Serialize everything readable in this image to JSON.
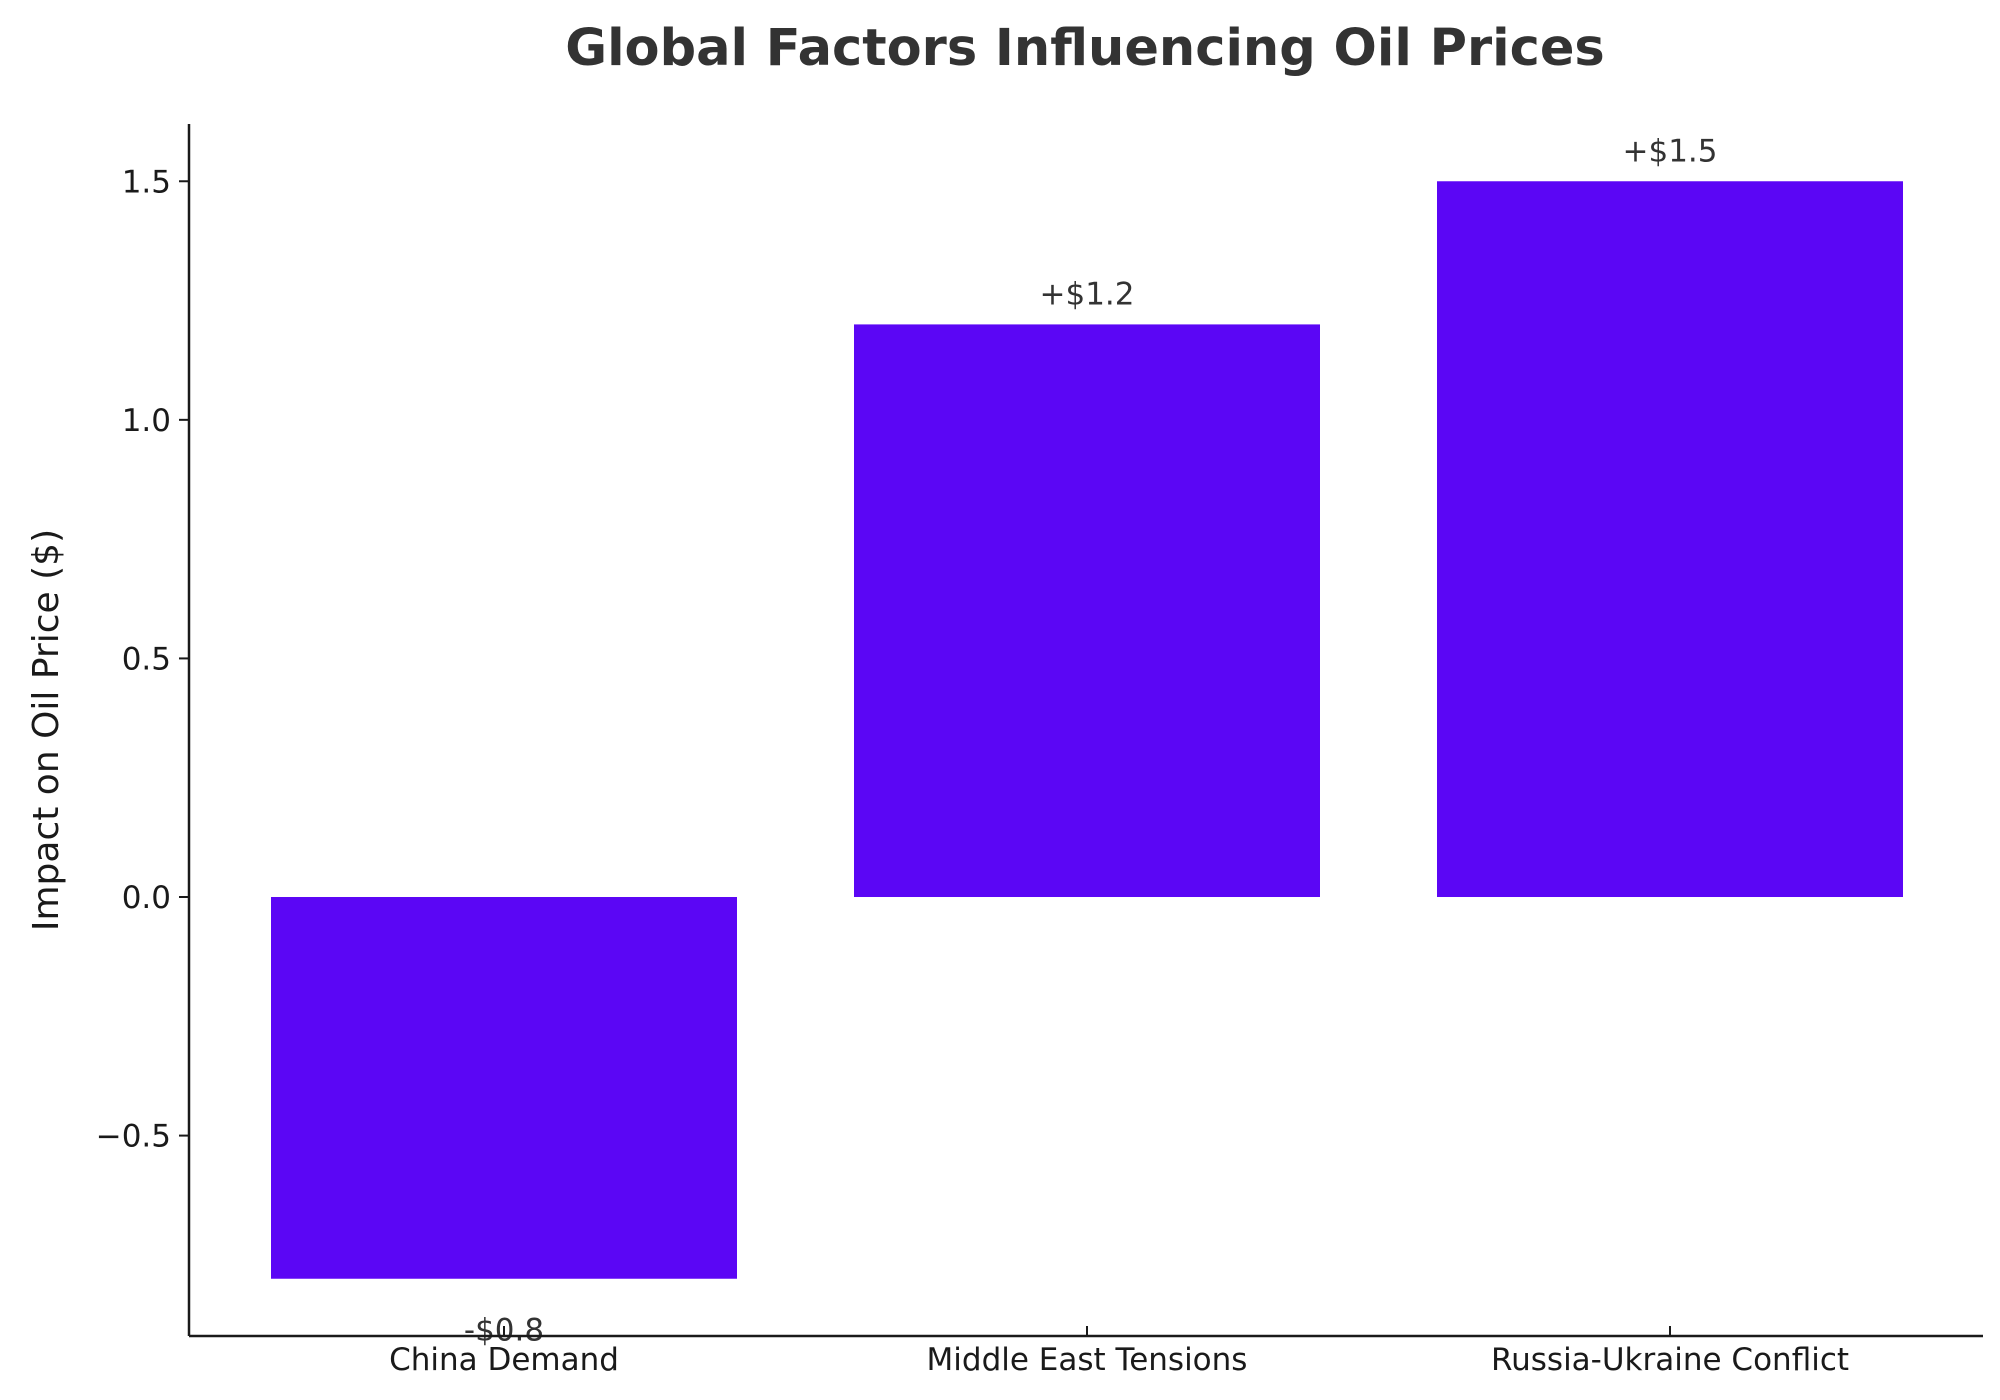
{
  "chart_data": {
    "type": "bar",
    "title": "Global Factors Influencing Oil Prices",
    "xlabel": "",
    "ylabel": "Impact on Oil Price ($)",
    "categories": [
      "China Demand",
      "Middle East Tensions",
      "Russia-Ukraine Conflict"
    ],
    "values": [
      -0.8,
      1.2,
      1.5
    ],
    "data_labels": [
      "-$0.8",
      "+$1.2",
      "+$1.5"
    ],
    "ylim": [
      -0.92,
      1.62
    ],
    "yticks": [
      -0.5,
      0.0,
      0.5,
      1.0,
      1.5
    ],
    "ytick_labels": [
      "−0.5",
      "0.0",
      "0.5",
      "1.0",
      "1.5"
    ],
    "bar_color": "#5b06f5",
    "grid": false,
    "legend": "none"
  }
}
